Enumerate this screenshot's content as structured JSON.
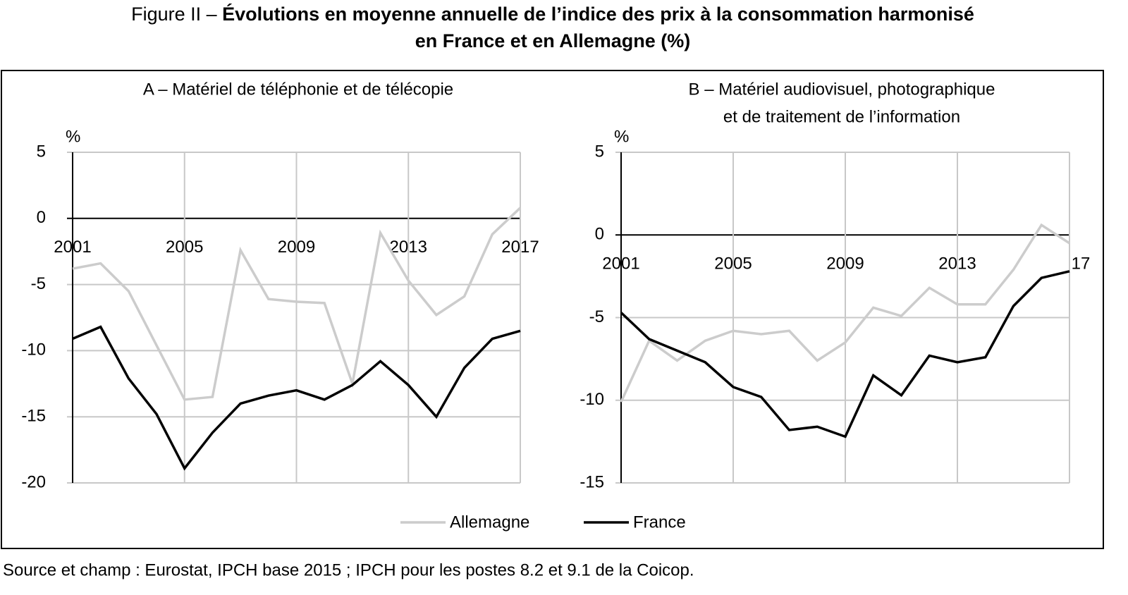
{
  "title_prefix": "Figure II –",
  "title": [
    "Évolutions en moyenne annuelle de l’indice des prix à la consommation harmonisé",
    "en France et en Allemagne (%)"
  ],
  "source": "Source et champ : Eurostat, IPCH base 2015 ; IPCH pour les postes 8.2 et 9.1 de la Coicop.",
  "chart_data": [
    {
      "type": "line",
      "title": [
        "A – Matériel de téléphonie et de télécopie"
      ],
      "y_unit": "%",
      "x": [
        2001,
        2002,
        2003,
        2004,
        2005,
        2006,
        2007,
        2008,
        2009,
        2010,
        2011,
        2012,
        2013,
        2014,
        2015,
        2016,
        2017
      ],
      "xlim": [
        2001,
        2017
      ],
      "xticks": [
        2001,
        2005,
        2009,
        2013,
        2017
      ],
      "ylim": [
        -20,
        5
      ],
      "yticks": [
        -20,
        -15,
        -10,
        -5,
        0,
        5
      ],
      "grid": true,
      "series": [
        {
          "name": "Allemagne",
          "color": "#cccccc",
          "values": [
            -3.8,
            -3.4,
            -5.5,
            -9.6,
            -13.7,
            -13.5,
            -2.4,
            -6.1,
            -6.3,
            -6.4,
            -12.5,
            -1.1,
            -4.7,
            -7.3,
            -5.9,
            -1.2,
            0.8
          ]
        },
        {
          "name": "France",
          "color": "#000000",
          "values": [
            -9.1,
            -8.2,
            -12.1,
            -14.8,
            -18.9,
            -16.2,
            -14.0,
            -13.4,
            -13.0,
            -13.7,
            -12.6,
            -10.8,
            -12.6,
            -15.0,
            -11.3,
            -9.1,
            -8.5
          ]
        }
      ]
    },
    {
      "type": "line",
      "title": [
        "B – Matériel audiovisuel, photographique",
        "et de traitement de l’information"
      ],
      "y_unit": "%",
      "x": [
        2001,
        2002,
        2003,
        2004,
        2005,
        2006,
        2007,
        2008,
        2009,
        2010,
        2011,
        2012,
        2013,
        2014,
        2015,
        2016,
        2017
      ],
      "xlim": [
        2001,
        2017
      ],
      "xticks": [
        2001,
        2005,
        2009,
        2013,
        {
          "value": 2017,
          "label": "17"
        }
      ],
      "ylim": [
        -15,
        5
      ],
      "yticks": [
        -15,
        -10,
        -5,
        0,
        5
      ],
      "grid": true,
      "series": [
        {
          "name": "Allemagne",
          "color": "#cccccc",
          "values": [
            -10.1,
            -6.4,
            -7.6,
            -6.4,
            -5.8,
            -6.0,
            -5.8,
            -7.6,
            -6.5,
            -4.4,
            -4.9,
            -3.2,
            -4.2,
            -4.2,
            -2.1,
            0.6,
            -0.5
          ]
        },
        {
          "name": "France",
          "color": "#000000",
          "values": [
            -4.7,
            -6.3,
            -7.0,
            -7.7,
            -9.2,
            -9.8,
            -11.8,
            -11.6,
            -12.2,
            -8.5,
            -9.7,
            -7.3,
            -7.7,
            -7.4,
            -4.3,
            -2.6,
            -2.2
          ]
        }
      ]
    }
  ]
}
